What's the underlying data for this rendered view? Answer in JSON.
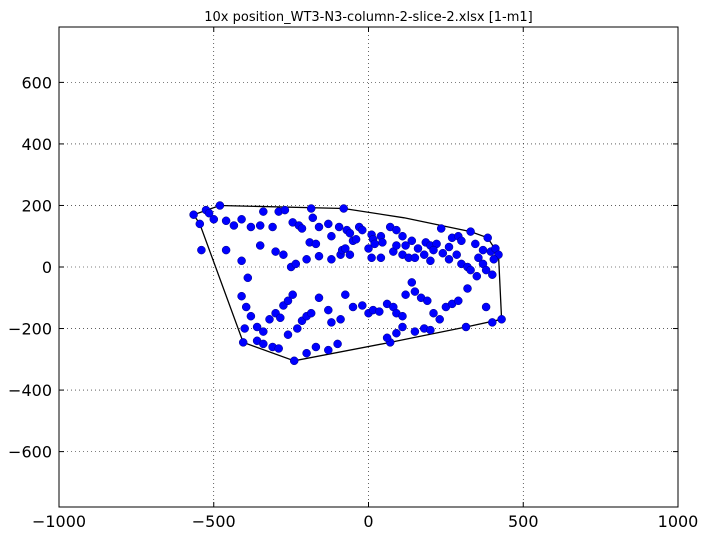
{
  "chart_data": {
    "type": "scatter",
    "title": "10x position_WT3-N3-column-2-slice-2.xlsx   [1-m1]",
    "xlabel": "",
    "ylabel": "",
    "xlim": [
      -1000,
      1000
    ],
    "ylim": [
      -780,
      780
    ],
    "xticks": [
      -1000,
      -500,
      0,
      500,
      1000
    ],
    "xtick_labels": [
      "−1000",
      "−500",
      "0",
      "500",
      "1000"
    ],
    "yticks": [
      -600,
      -400,
      -200,
      0,
      200,
      400,
      600
    ],
    "ytick_labels": [
      "−600",
      "−400",
      "−200",
      "0",
      "200",
      "400",
      "600"
    ],
    "grid": true,
    "grid_style": "dotted",
    "point_color": "#0000ff",
    "hull_color": "#000000",
    "hull": [
      [
        -565,
        170
      ],
      [
        -480,
        200
      ],
      [
        -80,
        190
      ],
      [
        115,
        160
      ],
      [
        330,
        115
      ],
      [
        385,
        95
      ],
      [
        420,
        40
      ],
      [
        430,
        -170
      ],
      [
        315,
        -195
      ],
      [
        70,
        -245
      ],
      [
        -240,
        -305
      ],
      [
        -405,
        -245
      ],
      [
        -545,
        140
      ],
      [
        -565,
        170
      ]
    ],
    "points": [
      [
        -565,
        170
      ],
      [
        -545,
        140
      ],
      [
        -525,
        185
      ],
      [
        -515,
        175
      ],
      [
        -500,
        155
      ],
      [
        -480,
        200
      ],
      [
        -460,
        150
      ],
      [
        -435,
        135
      ],
      [
        -410,
        155
      ],
      [
        -380,
        130
      ],
      [
        -350,
        135
      ],
      [
        -340,
        180
      ],
      [
        -310,
        130
      ],
      [
        -290,
        180
      ],
      [
        -270,
        185
      ],
      [
        -245,
        145
      ],
      [
        -225,
        135
      ],
      [
        -215,
        125
      ],
      [
        -185,
        190
      ],
      [
        -180,
        160
      ],
      [
        -160,
        130
      ],
      [
        -130,
        140
      ],
      [
        -120,
        100
      ],
      [
        -95,
        130
      ],
      [
        -80,
        190
      ],
      [
        -70,
        120
      ],
      [
        -60,
        110
      ],
      [
        -50,
        85
      ],
      [
        -40,
        90
      ],
      [
        -30,
        130
      ],
      [
        -20,
        120
      ],
      [
        10,
        105
      ],
      [
        15,
        90
      ],
      [
        20,
        75
      ],
      [
        40,
        100
      ],
      [
        45,
        80
      ],
      [
        70,
        130
      ],
      [
        90,
        120
      ],
      [
        110,
        100
      ],
      [
        120,
        70
      ],
      [
        140,
        85
      ],
      [
        160,
        60
      ],
      [
        185,
        80
      ],
      [
        200,
        70
      ],
      [
        220,
        75
      ],
      [
        235,
        125
      ],
      [
        260,
        65
      ],
      [
        270,
        95
      ],
      [
        290,
        100
      ],
      [
        300,
        85
      ],
      [
        330,
        115
      ],
      [
        345,
        75
      ],
      [
        370,
        55
      ],
      [
        385,
        95
      ],
      [
        395,
        50
      ],
      [
        410,
        60
      ],
      [
        420,
        40
      ],
      [
        -540,
        55
      ],
      [
        -460,
        55
      ],
      [
        -410,
        20
      ],
      [
        -390,
        -35
      ],
      [
        -350,
        70
      ],
      [
        -300,
        50
      ],
      [
        -275,
        40
      ],
      [
        -250,
        0
      ],
      [
        -235,
        10
      ],
      [
        -200,
        25
      ],
      [
        -190,
        80
      ],
      [
        -170,
        75
      ],
      [
        -160,
        35
      ],
      [
        -120,
        25
      ],
      [
        -90,
        40
      ],
      [
        -85,
        55
      ],
      [
        -75,
        60
      ],
      [
        -60,
        40
      ],
      [
        0,
        60
      ],
      [
        10,
        30
      ],
      [
        40,
        30
      ],
      [
        80,
        50
      ],
      [
        90,
        70
      ],
      [
        110,
        40
      ],
      [
        130,
        30
      ],
      [
        150,
        30
      ],
      [
        180,
        40
      ],
      [
        200,
        20
      ],
      [
        210,
        55
      ],
      [
        240,
        45
      ],
      [
        260,
        25
      ],
      [
        285,
        40
      ],
      [
        300,
        10
      ],
      [
        320,
        0
      ],
      [
        330,
        -10
      ],
      [
        355,
        30
      ],
      [
        370,
        10
      ],
      [
        380,
        -10
      ],
      [
        400,
        -25
      ],
      [
        405,
        25
      ],
      [
        -410,
        -95
      ],
      [
        -395,
        -130
      ],
      [
        -380,
        -160
      ],
      [
        -360,
        -195
      ],
      [
        -340,
        -210
      ],
      [
        -320,
        -170
      ],
      [
        -300,
        -150
      ],
      [
        -285,
        -165
      ],
      [
        -275,
        -125
      ],
      [
        -260,
        -110
      ],
      [
        -245,
        -90
      ],
      [
        -230,
        -200
      ],
      [
        -215,
        -175
      ],
      [
        -200,
        -160
      ],
      [
        -185,
        -150
      ],
      [
        -160,
        -100
      ],
      [
        -130,
        -140
      ],
      [
        -120,
        -180
      ],
      [
        -90,
        -170
      ],
      [
        -75,
        -90
      ],
      [
        -50,
        -130
      ],
      [
        -20,
        -125
      ],
      [
        0,
        -150
      ],
      [
        15,
        -140
      ],
      [
        35,
        -145
      ],
      [
        60,
        -120
      ],
      [
        80,
        -130
      ],
      [
        90,
        -150
      ],
      [
        110,
        -160
      ],
      [
        120,
        -90
      ],
      [
        140,
        -50
      ],
      [
        150,
        -80
      ],
      [
        170,
        -100
      ],
      [
        190,
        -110
      ],
      [
        210,
        -150
      ],
      [
        230,
        -170
      ],
      [
        250,
        -130
      ],
      [
        270,
        -120
      ],
      [
        290,
        -110
      ],
      [
        320,
        -70
      ],
      [
        350,
        -30
      ],
      [
        380,
        -130
      ],
      [
        400,
        -180
      ],
      [
        430,
        -170
      ],
      [
        -400,
        -200
      ],
      [
        -405,
        -245
      ],
      [
        -360,
        -240
      ],
      [
        -340,
        -250
      ],
      [
        -310,
        -260
      ],
      [
        -290,
        -265
      ],
      [
        -260,
        -220
      ],
      [
        -240,
        -305
      ],
      [
        -200,
        -280
      ],
      [
        -170,
        -260
      ],
      [
        -130,
        -270
      ],
      [
        -100,
        -250
      ],
      [
        70,
        -245
      ],
      [
        60,
        -230
      ],
      [
        90,
        -215
      ],
      [
        110,
        -195
      ],
      [
        150,
        -210
      ],
      [
        180,
        -200
      ],
      [
        200,
        -205
      ],
      [
        315,
        -195
      ]
    ]
  }
}
